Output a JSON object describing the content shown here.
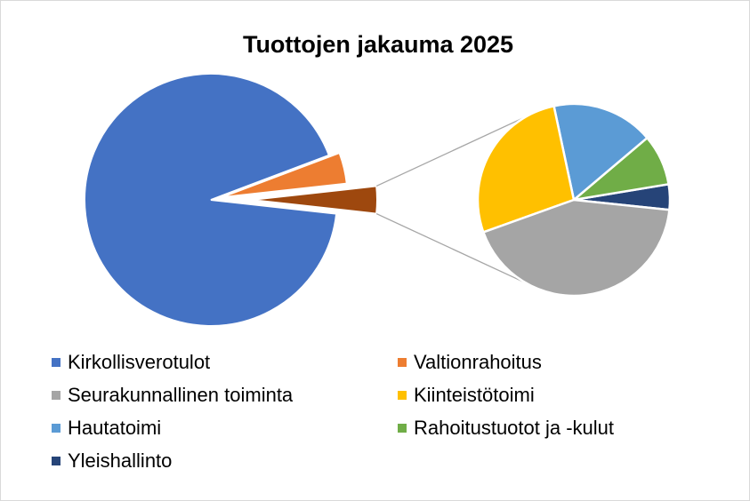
{
  "chart_data": {
    "type": "pie-of-pie",
    "title": "Tuottojen jakauma 2025",
    "categories": [
      "Kirkollisverotulot",
      "Valtionrahoitus",
      "Seurakunnallinen toiminta",
      "Kiinteistötoimi",
      "Hautatoimi",
      "Rahoitustuotot ja -kulut",
      "Yleishallinto"
    ],
    "values": [
      92.5,
      4,
      1.5,
      0.95,
      0.6,
      0.3,
      0.15
    ],
    "colors": [
      "#4472c4",
      "#ed7d31",
      "#a5a5a5",
      "#ffc000",
      "#5b9bd5",
      "#70ad47",
      "#264478"
    ],
    "second_plot": 5,
    "other_color": "#9e480e",
    "legend": "bottom"
  }
}
